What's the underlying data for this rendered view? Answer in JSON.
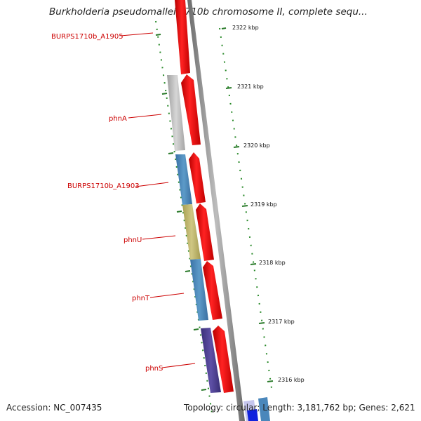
{
  "header": {
    "title": "Burkholderia pseudomallei 1710b chromosome II, complete sequ..."
  },
  "footer": {
    "accession": "Accession: NC_007435",
    "stats": "Topology: circular; Length: 3,181,762 bp; Genes: 2,621"
  },
  "colors": {
    "label": "#cc0000",
    "ruler": "#2a8a2a",
    "backbone": "#888888",
    "strand_red": "#ee1111",
    "gray": "#bcbcbc",
    "steel": "#4a87bb",
    "olive": "#bdb46a",
    "purple": "#4b3d8f",
    "blue": "#2233cc"
  },
  "gene_labels": [
    "BURPS1710b_A1905",
    "phnA",
    "BURPS1710b_A1903",
    "phnU",
    "phnT",
    "phnS"
  ],
  "ruler_ticks": [
    "2322 kbp",
    "2321 kbp",
    "2320 kbp",
    "2319 kbp",
    "2318 kbp",
    "2317 kbp",
    "2316 kbp"
  ]
}
